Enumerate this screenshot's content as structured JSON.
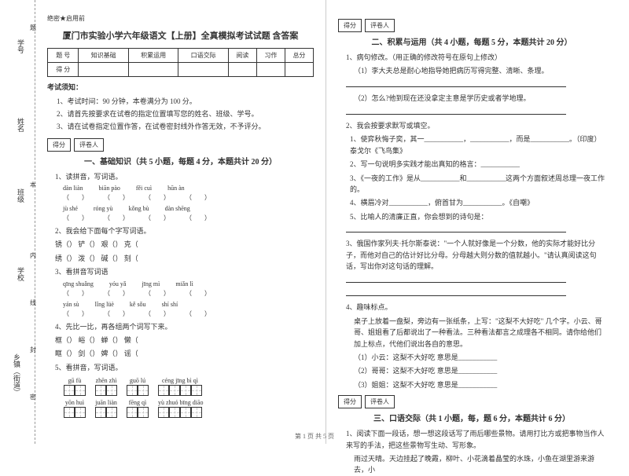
{
  "margin": {
    "xuehao": "学号",
    "xingming": "姓名",
    "banji": "班级",
    "xuexiao": "学校",
    "xiangzhen": "乡镇（街道）",
    "ti": "题",
    "ben": "本",
    "nei": "内",
    "xian": "线",
    "feng": "封",
    "mi": "密"
  },
  "header": {
    "secret": "绝密★启用前",
    "title": "厦门市实验小学六年级语文【上册】全真模拟考试试题 含答案"
  },
  "score_table": {
    "row1": [
      "题 号",
      "知识基础",
      "积累运用",
      "口语交际",
      "阅读",
      "习作",
      "总分"
    ],
    "row2": [
      "得 分",
      "",
      "",
      "",
      "",
      "",
      ""
    ]
  },
  "notice": {
    "title": "考试须知：",
    "items": [
      "1、考试时间：90 分钟，本卷满分为 100 分。",
      "2、请首先按要求在试卷的指定位置填写您的姓名、班级、学号。",
      "3、请在试卷指定位置作答，在试卷密封线外作答无效，不予评分。"
    ]
  },
  "scorebox": {
    "defen": "得分",
    "pingjuan": "评卷人"
  },
  "sec1": {
    "title": "一、基础知识（共 5 小题，每题 4 分，本题共计 20 分）",
    "q1": "1、读拼音，写词语。",
    "q1_py": [
      [
        "dàn liàn",
        "biān pào",
        "fěi cuì",
        "hūn àn"
      ],
      [
        "jù shé",
        "róng yù",
        "kǒng bù",
        "dàn shēng"
      ]
    ],
    "q2": "2、我会给下面每个字写词语。",
    "q2_chars": [
      [
        "锈（",
        "）  铲（",
        "）  艰（",
        "）  克（",
        "）"
      ],
      [
        "绣（",
        "）  泼（",
        "）  碱（",
        "）  刻（",
        "）"
      ]
    ],
    "q3": "3、看拼音写词语",
    "q3_py": [
      [
        "qīng shuǎng",
        "yóu yǎ",
        "jīng mì",
        "miǎn lì"
      ],
      [
        "yán sù",
        "lǐng lüè",
        "kě sǒu",
        "shí shí"
      ]
    ],
    "q4": "4、先比一比，再各组两个词写下来。",
    "q4_chars": [
      [
        "框（",
        "）  峪（",
        "）  蝉（",
        "）  懒（",
        "）"
      ],
      [
        "眶（",
        "）  剑（",
        "）  婢（",
        "）  谣（",
        "）"
      ]
    ],
    "q5": "5、看拼音，写词语。",
    "q5_grid": [
      {
        "py": "gū fù",
        "n": 2
      },
      {
        "py": "zhēn zhì",
        "n": 2
      },
      {
        "py": "guō lú",
        "n": 2
      },
      {
        "py": "céng jīng  bì  qì",
        "n": 4
      },
      {
        "py": "yōn huì",
        "n": 2
      },
      {
        "py": "juān liàn",
        "n": 2
      },
      {
        "py": "fēng qì",
        "n": 2
      },
      {
        "py": "yù  zhuó  bīng  diāo",
        "n": 4
      }
    ]
  },
  "sec2": {
    "title": "二、积累与运用（共 4 小题，每题 5 分，本题共计 20 分）",
    "q1": "1、病句修改。（用正确的修改符号在原句上修改）",
    "q1_sub": [
      "（1）李大夫总是耐心地指导她把病历写得完整、清晰、条理。",
      "（2）怎么?他到现在还没拿定主意是学历史或者学地理。"
    ],
    "q2": "2、我会按要求默写或填空。",
    "q2_sub": [
      {
        "text": "1、使弈秋悔子奕，其一___________，___________，而是___________。（印度）泰戈尔《飞鸟集》"
      },
      {
        "text": "2、写一句说明多实践才能出真知的格言：___________"
      },
      {
        "text": "3、《一夜的工作》是从___________和___________这两个方面叙述周总理一夜工作的。"
      },
      {
        "text": "4、横眉冷对___________，俯首甘为___________。《自嘲》"
      },
      {
        "text": "5、比喻人的清廉正直，你会想到的诗句是："
      }
    ],
    "q3": "3、俄国作家列夫·托尔斯泰说：\"一个人就好像是一个分数，他的实际才能好比分子，而他对自己的估计好比分母。分母越大则分数的值就越小。\"请认真阅读这句话，写出你对这句话的理解。",
    "q4": "4、趣味标点。",
    "q4_text": "桌子上放着一盘梨，旁边有一张纸条，上写：\"这梨不大好吃\" 几个字。小云、哥哥、姐姐看了后都说出了一种看法。三种看法都言之成理各不相同。请你给他们加上标点，代他们说出各自的意思。",
    "q4_sub": [
      "（1）小云：这梨不大好吃    意思是___________",
      "（2）哥哥：这梨不大好吃    意思是___________",
      "（3）姐姐：这梨不大好吃    意思是___________"
    ]
  },
  "sec3": {
    "title": "三、口语交际（共 1 小题，每，题 6 分，本题共计 6 分）",
    "q1": "1、阅读下面一段话，想一想这段话写了雨后哪些景物。请用打比方或把事物当作人来写的手法，把这些景物写生动、写形象。",
    "q1_text": "雨过天晴。天边挂起了晚霞，柳叶、小花滴着晶莹的水珠，小鱼在湖里游来游去，小"
  },
  "footer": "第 1 页 共 5 页"
}
